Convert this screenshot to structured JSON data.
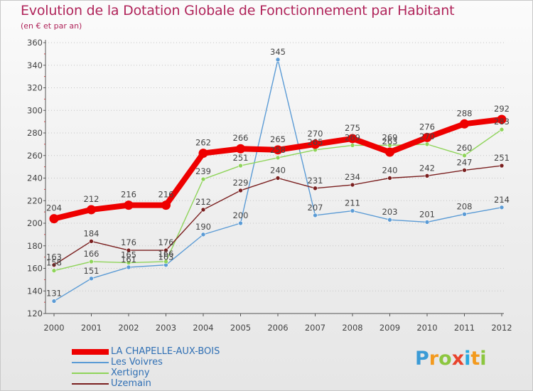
{
  "title": "Evolution de la Dotation Globale de Fonctionnement par Habitant",
  "subtitle": "(en € et par an)",
  "logo_text": "Proxiti",
  "colors": {
    "title": "#b0245a",
    "axis": "#555555",
    "legend_text": "#2f6fb4"
  },
  "chart_data": {
    "type": "line",
    "title": "Evolution de la Dotation Globale de Fonctionnement par Habitant",
    "subtitle": "(en € et par an)",
    "xlabel": "",
    "ylabel": "",
    "ylim": [
      120,
      360
    ],
    "yticks": [
      120,
      140,
      160,
      180,
      200,
      220,
      240,
      260,
      280,
      300,
      320,
      340,
      360
    ],
    "categories": [
      "2000",
      "2001",
      "2002",
      "2003",
      "2004",
      "2005",
      "2006",
      "2007",
      "2008",
      "2009",
      "2010",
      "2011",
      "2012"
    ],
    "grid": "horizontal dotted",
    "legend": "bottom-left",
    "series": [
      {
        "name": "LA CHAPELLE-AUX-BOIS",
        "color": "#ee0000",
        "emphasis": true,
        "values": [
          204,
          212,
          216,
          216,
          262,
          266,
          265,
          270,
          275,
          263,
          276,
          288,
          292
        ]
      },
      {
        "name": "Les Voivres",
        "color": "#5b9bd5",
        "values": [
          131,
          151,
          161,
          163,
          190,
          200,
          345,
          207,
          211,
          203,
          201,
          208,
          214
        ]
      },
      {
        "name": "Xertigny",
        "color": "#8fd45a",
        "values": [
          158,
          166,
          165,
          166,
          239,
          251,
          258,
          265,
          269,
          269,
          270,
          260,
          283
        ]
      },
      {
        "name": "Uzemain",
        "color": "#7a1f1f",
        "values": [
          163,
          184,
          176,
          176,
          212,
          229,
          240,
          231,
          234,
          240,
          242,
          247,
          251
        ]
      }
    ]
  }
}
